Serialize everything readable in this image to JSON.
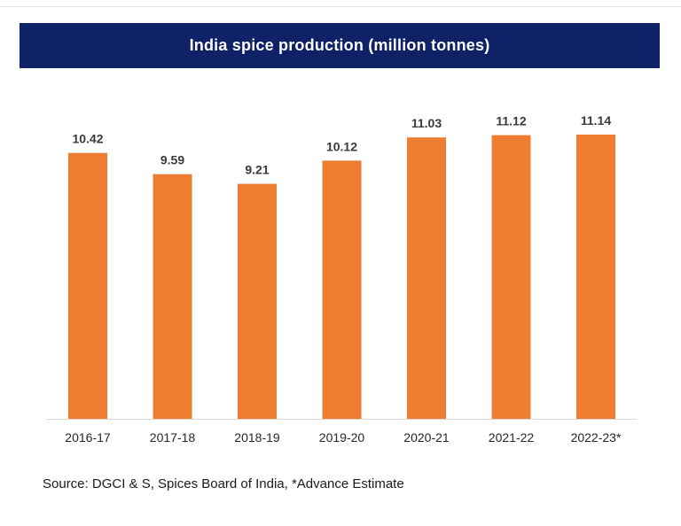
{
  "title": "India spice production (million tonnes)",
  "source": "Source: DGCI & S, Spices Board of India, *Advance Estimate",
  "colors": {
    "header_bg": "#0f2167",
    "bar": "#ed7d31",
    "axis": "#d9d9d9"
  },
  "chart_data": {
    "type": "bar",
    "title": "India spice production (million tonnes)",
    "categories": [
      "2016-17",
      "2017-18",
      "2018-19",
      "2019-20",
      "2020-21",
      "2021-22",
      "2022-23*"
    ],
    "values": [
      10.42,
      9.59,
      9.21,
      10.12,
      11.03,
      11.12,
      11.14
    ],
    "data_labels": [
      "10.42",
      "9.59",
      "9.21",
      "10.12",
      "11.03",
      "11.12",
      "11.14"
    ],
    "xlabel": "",
    "ylabel": "",
    "ylim": [
      0,
      11.14
    ],
    "grid": false,
    "legend": "none"
  }
}
